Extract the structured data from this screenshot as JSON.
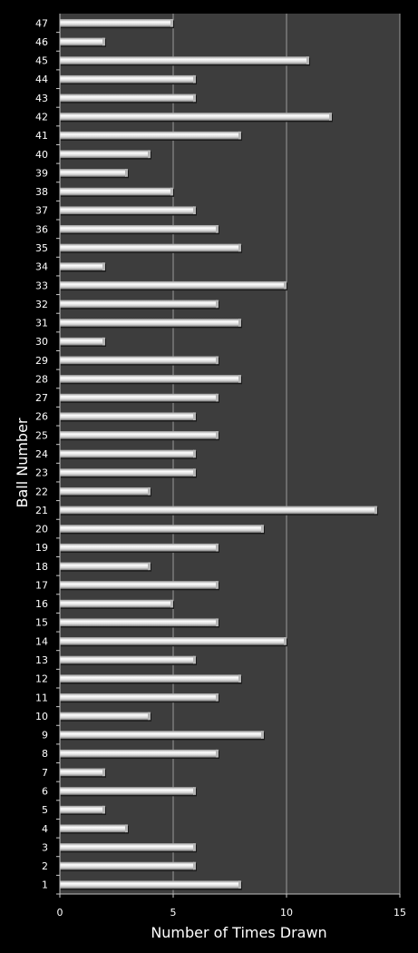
{
  "chart_data": {
    "type": "bar",
    "orientation": "horizontal",
    "title": "",
    "xlabel": "Number of Times Drawn",
    "ylabel": "Ball Number",
    "xlim": [
      0,
      15
    ],
    "xticks": [
      0,
      5,
      10,
      15
    ],
    "grid": "vertical lines",
    "legend": "none",
    "categories": [
      "1",
      "2",
      "3",
      "4",
      "5",
      "6",
      "7",
      "8",
      "9",
      "10",
      "11",
      "12",
      "13",
      "14",
      "15",
      "16",
      "17",
      "18",
      "19",
      "20",
      "21",
      "22",
      "23",
      "24",
      "25",
      "26",
      "27",
      "28",
      "29",
      "30",
      "31",
      "32",
      "33",
      "34",
      "35",
      "36",
      "37",
      "38",
      "39",
      "40",
      "41",
      "42",
      "43",
      "44",
      "45",
      "46",
      "47"
    ],
    "values": [
      8,
      6,
      6,
      3,
      2,
      6,
      2,
      7,
      9,
      4,
      7,
      8,
      6,
      10,
      7,
      5,
      7,
      4,
      7,
      9,
      14,
      4,
      6,
      6,
      7,
      6,
      7,
      8,
      7,
      2,
      8,
      7,
      10,
      2,
      8,
      7,
      6,
      5,
      3,
      4,
      8,
      12,
      6,
      6,
      11,
      2,
      5
    ]
  },
  "colors": {
    "background": "#000000",
    "plot_area": "#3d3d3d",
    "gridline": "#9a9a9a",
    "bar_light": "#ffffff",
    "bar_dark": "#8c8c8c",
    "text": "#ffffff"
  }
}
